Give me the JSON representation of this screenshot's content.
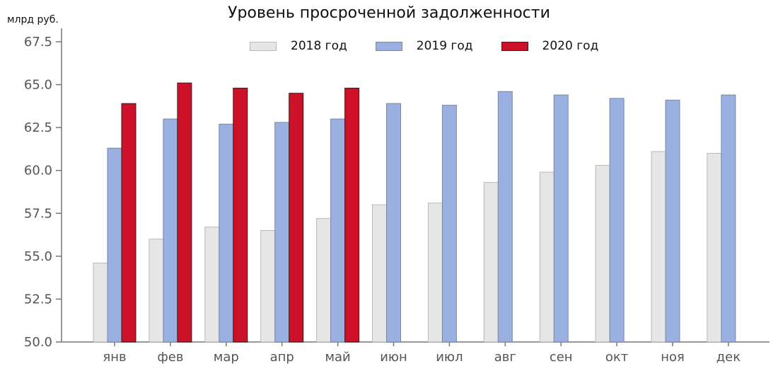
{
  "chart_data": {
    "type": "bar",
    "title": "Уровень просроченной задолженности",
    "xlabel": "",
    "ylabel": "млрд руб.",
    "ylim": [
      50.0,
      67.5
    ],
    "yticks": [
      "50.0",
      "52.5",
      "55.0",
      "57.5",
      "60.0",
      "62.5",
      "65.0",
      "67.5"
    ],
    "grid": false,
    "legend_position": "top",
    "categories": [
      "янв",
      "фев",
      "мар",
      "апр",
      "май",
      "июн",
      "июл",
      "авг",
      "сен",
      "окт",
      "ноя",
      "дек"
    ],
    "series": [
      {
        "name": "2018 год",
        "color": "#e6e6e6",
        "stroke": "#b8b8b8",
        "values": [
          54.6,
          56.0,
          56.7,
          56.5,
          57.2,
          58.0,
          58.1,
          59.3,
          59.9,
          60.3,
          61.1,
          61.0
        ]
      },
      {
        "name": "2019 год",
        "color": "#99b0e0",
        "stroke": "#7a879f",
        "values": [
          61.3,
          63.0,
          62.7,
          62.8,
          63.0,
          63.9,
          63.8,
          64.6,
          64.4,
          64.2,
          64.1,
          64.4
        ]
      },
      {
        "name": "2020 год",
        "color": "#cc1128",
        "stroke": "#3a1a1a",
        "values": [
          63.9,
          65.1,
          64.8,
          64.5,
          64.8
        ]
      }
    ]
  },
  "title": "Уровень просроченной задолженности",
  "y_unit": "млрд руб.",
  "legend": [
    {
      "label": "2018 год",
      "color": "#e6e6e6",
      "border": "#b8b8b8"
    },
    {
      "label": "2019 год",
      "color": "#99b0e0",
      "border": "#7a879f"
    },
    {
      "label": "2020 год",
      "color": "#cc1128",
      "border": "#3a1a1a"
    }
  ]
}
